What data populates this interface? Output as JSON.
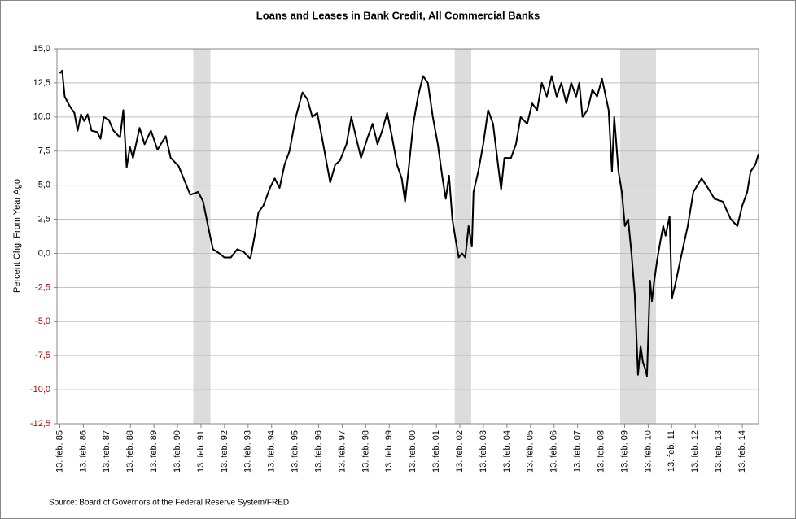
{
  "chart_data": {
    "type": "line",
    "title": "Loans and Leases in Bank Credit, All Commercial Banks",
    "y_label": "Percent Chg. From Year Ago",
    "source": "Source: Board of Governors of the Federal Reserve System/FRED",
    "xlim": [
      1985.0,
      2014.81
    ],
    "ylim": [
      -12.5,
      15
    ],
    "yticks": [
      {
        "value": -12.5,
        "label": "-12,5"
      },
      {
        "value": -10,
        "label": "-10,0"
      },
      {
        "value": -7.5,
        "label": "-7,5"
      },
      {
        "value": -5,
        "label": "-5,0"
      },
      {
        "value": -2.5,
        "label": "-2,5"
      },
      {
        "value": 0,
        "label": "0,0"
      },
      {
        "value": 2.5,
        "label": "2,5"
      },
      {
        "value": 5,
        "label": "5,0"
      },
      {
        "value": 7.5,
        "label": "7,5"
      },
      {
        "value": 10,
        "label": "10,0"
      },
      {
        "value": 12.5,
        "label": "12,5"
      },
      {
        "value": 15,
        "label": "15,0"
      }
    ],
    "xticks": [
      {
        "value": 1985.12,
        "label": "13. feb. 85"
      },
      {
        "value": 1986.12,
        "label": "13. feb. 86"
      },
      {
        "value": 1987.12,
        "label": "13. feb. 87"
      },
      {
        "value": 1988.12,
        "label": "13. feb. 88"
      },
      {
        "value": 1989.12,
        "label": "13. feb. 89"
      },
      {
        "value": 1990.12,
        "label": "13. feb. 90"
      },
      {
        "value": 1991.12,
        "label": "13. feb. 91"
      },
      {
        "value": 1992.12,
        "label": "13. feb. 92"
      },
      {
        "value": 1993.12,
        "label": "13. feb. 93"
      },
      {
        "value": 1994.12,
        "label": "13. feb. 94"
      },
      {
        "value": 1995.12,
        "label": "13. feb. 95"
      },
      {
        "value": 1996.12,
        "label": "13. feb. 96"
      },
      {
        "value": 1997.12,
        "label": "13. feb. 97"
      },
      {
        "value": 1998.12,
        "label": "13. feb. 98"
      },
      {
        "value": 1999.12,
        "label": "13. feb. 99"
      },
      {
        "value": 2000.12,
        "label": "13. feb. 00"
      },
      {
        "value": 2001.12,
        "label": "13. feb. 01"
      },
      {
        "value": 2002.12,
        "label": "13. feb. 02"
      },
      {
        "value": 2003.12,
        "label": "13. feb. 03"
      },
      {
        "value": 2004.12,
        "label": "13. feb. 04"
      },
      {
        "value": 2005.12,
        "label": "13. feb. 05"
      },
      {
        "value": 2006.12,
        "label": "13. feb. 06"
      },
      {
        "value": 2007.12,
        "label": "13. feb. 07"
      },
      {
        "value": 2008.12,
        "label": "13. feb. 08"
      },
      {
        "value": 2009.12,
        "label": "13. feb. 09"
      },
      {
        "value": 2010.12,
        "label": "13. feb. 10"
      },
      {
        "value": 2011.12,
        "label": "13. feb. 11"
      },
      {
        "value": 2012.12,
        "label": "13. feb. 12"
      },
      {
        "value": 2013.12,
        "label": "13. feb. 13"
      },
      {
        "value": 2014.12,
        "label": "13. feb. 14"
      }
    ],
    "grid": true,
    "negative_tick_color": "#c00000",
    "shade_color": "#dcdcdc",
    "shaded_periods": [
      [
        1990.79,
        1991.52
      ],
      [
        2001.9,
        2002.6
      ],
      [
        2008.93,
        2010.45
      ]
    ],
    "color": "#000000",
    "x": [
      1985.12,
      1985.22,
      1985.33,
      1985.54,
      1985.74,
      1985.88,
      1986.02,
      1986.16,
      1986.3,
      1986.47,
      1986.71,
      1986.85,
      1986.99,
      1987.2,
      1987.4,
      1987.68,
      1987.82,
      1987.96,
      1988.1,
      1988.23,
      1988.51,
      1988.72,
      1988.99,
      1989.27,
      1989.62,
      1989.83,
      1990.17,
      1990.38,
      1990.66,
      1991.0,
      1991.21,
      1991.42,
      1991.63,
      1991.9,
      1992.11,
      1992.39,
      1992.66,
      1992.94,
      1993.22,
      1993.42,
      1993.56,
      1993.77,
      1994.05,
      1994.25,
      1994.46,
      1994.67,
      1994.88,
      1995.15,
      1995.43,
      1995.64,
      1995.85,
      1996.06,
      1996.26,
      1996.47,
      1996.61,
      1996.82,
      1997.02,
      1997.3,
      1997.51,
      1997.71,
      1997.92,
      1998.2,
      1998.41,
      1998.62,
      1998.82,
      1999.03,
      1999.24,
      1999.45,
      1999.65,
      1999.79,
      1999.93,
      2000.14,
      2000.34,
      2000.55,
      2000.76,
      2000.97,
      2001.18,
      2001.38,
      2001.52,
      2001.66,
      2001.8,
      2001.94,
      2002.07,
      2002.21,
      2002.35,
      2002.49,
      2002.63,
      2002.7,
      2002.9,
      2003.11,
      2003.32,
      2003.53,
      2003.74,
      2003.87,
      2004.01,
      2004.29,
      2004.5,
      2004.7,
      2004.98,
      2005.19,
      2005.4,
      2005.6,
      2005.81,
      2006.02,
      2006.23,
      2006.43,
      2006.64,
      2006.85,
      2007.06,
      2007.19,
      2007.33,
      2007.54,
      2007.75,
      2007.95,
      2008.16,
      2008.44,
      2008.58,
      2008.68,
      2008.86,
      2009.0,
      2009.13,
      2009.27,
      2009.41,
      2009.55,
      2009.69,
      2009.8,
      2009.9,
      2010.0,
      2010.07,
      2010.2,
      2010.28,
      2010.38,
      2010.5,
      2010.65,
      2010.76,
      2010.86,
      2011.03,
      2011.13,
      2011.27,
      2011.55,
      2011.8,
      2012.04,
      2012.39,
      2012.66,
      2012.94,
      2013.29,
      2013.63,
      2013.91,
      2014.12,
      2014.33,
      2014.47,
      2014.67,
      2014.81
    ],
    "values": [
      13.2,
      13.4,
      11.5,
      10.8,
      10.3,
      9.0,
      10.2,
      9.7,
      10.2,
      9.0,
      8.9,
      8.4,
      10.0,
      9.8,
      9.0,
      8.5,
      10.5,
      6.3,
      7.8,
      7.0,
      9.2,
      8.0,
      9.0,
      7.6,
      8.6,
      7.0,
      6.4,
      5.5,
      4.3,
      4.5,
      3.8,
      2.0,
      0.3,
      0.0,
      -0.3,
      -0.3,
      0.3,
      0.1,
      -0.4,
      1.5,
      3.0,
      3.5,
      4.8,
      5.5,
      4.8,
      6.5,
      7.5,
      10.0,
      11.8,
      11.3,
      10.0,
      10.3,
      8.5,
      6.5,
      5.2,
      6.5,
      6.8,
      8.0,
      10.0,
      8.5,
      7.0,
      8.5,
      9.5,
      8.0,
      9.0,
      10.3,
      8.5,
      6.5,
      5.5,
      3.8,
      6.0,
      9.5,
      11.5,
      13.0,
      12.5,
      10.0,
      8.0,
      5.5,
      4.0,
      5.7,
      2.5,
      1.0,
      -0.3,
      0.0,
      -0.3,
      2.0,
      0.5,
      4.5,
      6.0,
      8.0,
      10.5,
      9.5,
      6.5,
      4.7,
      7.0,
      7.0,
      8.0,
      10.0,
      9.5,
      11.0,
      10.5,
      12.5,
      11.5,
      13.0,
      11.5,
      12.5,
      11.0,
      12.5,
      11.5,
      12.5,
      10.0,
      10.5,
      12.0,
      11.5,
      12.8,
      10.5,
      6.0,
      10.0,
      6.0,
      4.5,
      2.0,
      2.5,
      0.0,
      -3.0,
      -8.9,
      -6.8,
      -8.0,
      -8.5,
      -9.0,
      -2.0,
      -3.5,
      -2.0,
      -0.5,
      1.0,
      2.0,
      1.3,
      2.7,
      -3.3,
      -2.3,
      0.0,
      2.0,
      4.5,
      5.5,
      4.8,
      4.0,
      3.8,
      2.5,
      2.0,
      3.5,
      4.5,
      6.0,
      6.5,
      7.3
    ]
  }
}
